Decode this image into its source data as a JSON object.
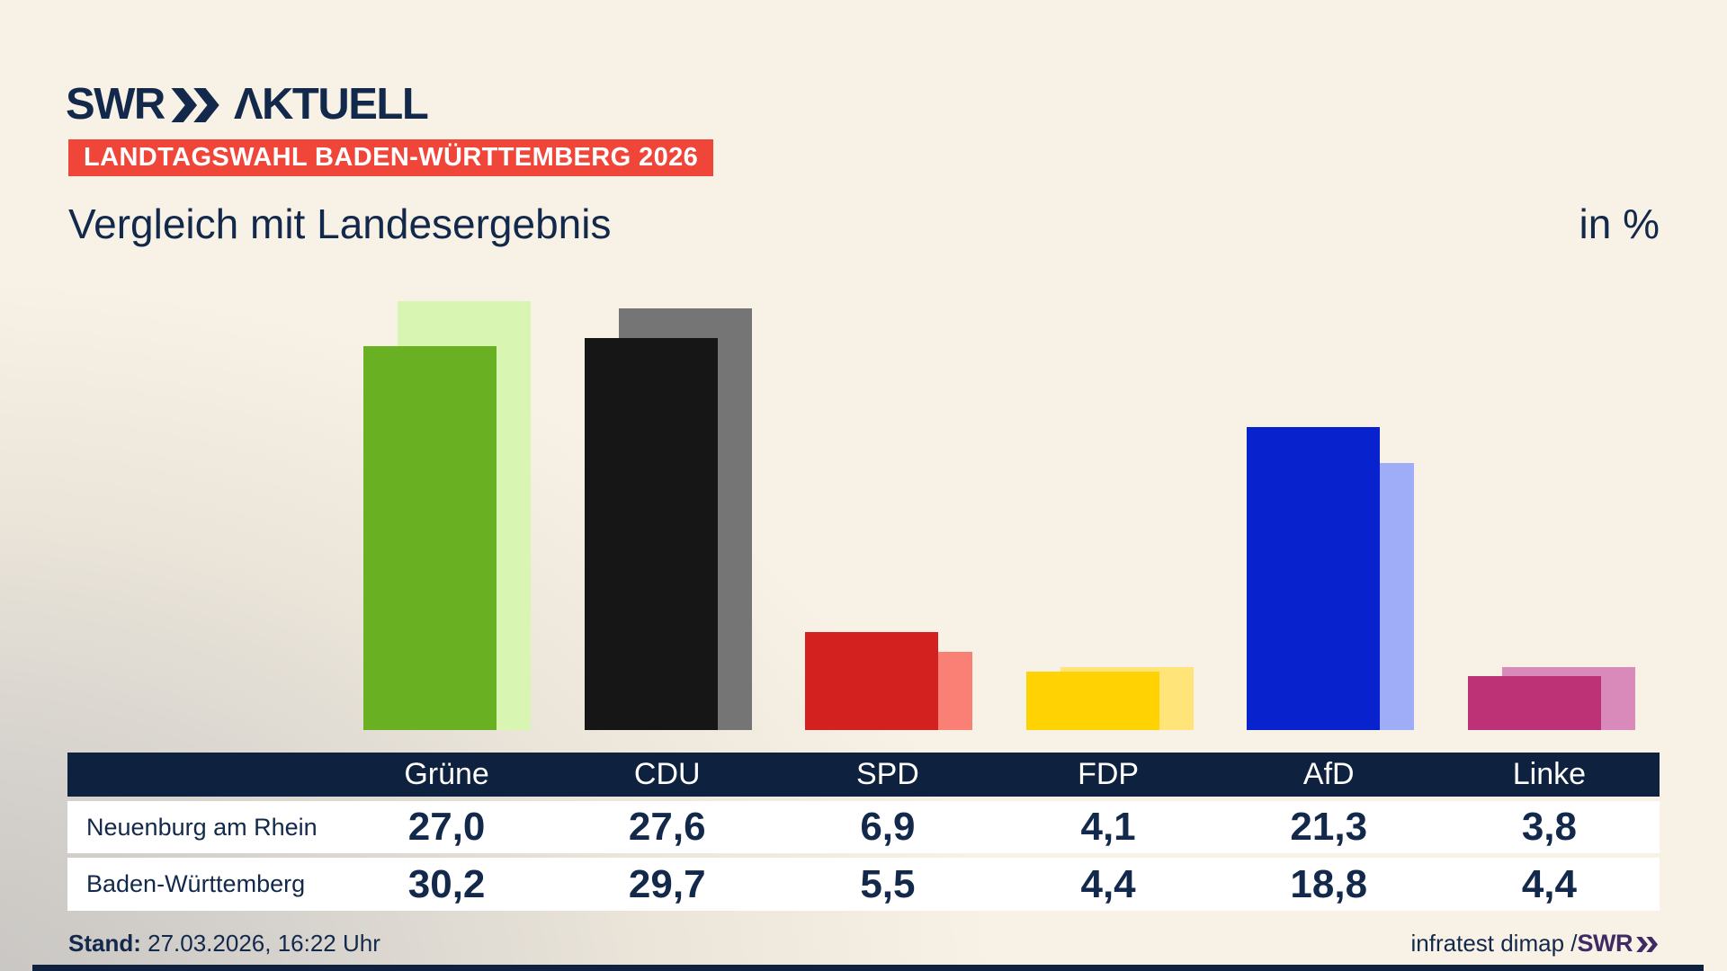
{
  "brand": {
    "swr": "SWR",
    "aktuell": "ΛKTUELL"
  },
  "badge": {
    "text": "LANDTAGSWAHL BADEN-WÜRTTEMBERG 2026",
    "bg": "#f0463a",
    "fg": "#ffffff"
  },
  "title": "Vergleich mit Landesergebnis",
  "unit_label": "in %",
  "chart_data": {
    "type": "bar",
    "categories": [
      "Grüne",
      "CDU",
      "SPD",
      "FDP",
      "AfD",
      "Linke"
    ],
    "series": [
      {
        "name": "Neuenburg am Rhein",
        "role": "front",
        "values": [
          27.0,
          27.6,
          6.9,
          4.1,
          21.3,
          3.8
        ]
      },
      {
        "name": "Baden-Württemberg",
        "role": "back",
        "values": [
          30.2,
          29.7,
          5.5,
          4.4,
          18.8,
          4.4
        ]
      }
    ],
    "title": "Vergleich mit Landesergebnis",
    "unit": "in %",
    "ylim": [
      0,
      34
    ],
    "grid": false,
    "legend_position": "table-below",
    "bar_colors_front": [
      "#6ab023",
      "#161616",
      "#d32120",
      "#ffd204",
      "#0823cd",
      "#bd3277"
    ],
    "bar_colors_back": [
      "#d8f6b2",
      "#757575",
      "#fa8076",
      "#ffe47a",
      "#9fadf8",
      "#d98aba"
    ]
  },
  "table": {
    "header": [
      "",
      "Grüne",
      "CDU",
      "SPD",
      "FDP",
      "AfD",
      "Linke"
    ],
    "rows": [
      {
        "label": "Neuenburg am Rhein",
        "values": [
          "27,0",
          "27,6",
          "6,9",
          "4,1",
          "21,3",
          "3,8"
        ]
      },
      {
        "label": "Baden-Württemberg",
        "values": [
          "30,2",
          "29,7",
          "5,5",
          "4,4",
          "18,8",
          "4,4"
        ]
      }
    ]
  },
  "footer": {
    "stand_label": "Stand:",
    "stand_value": " 27.03.2026, 16:22 Uhr",
    "source_text": "infratest dimap / ",
    "source_brand": "SWR"
  },
  "colors": {
    "background": "#f8f1e6",
    "background_corner": "#c6c4c1",
    "navy_text": "#13294b",
    "table_header_bg": "#0e2240",
    "badge_red": "#f0463a",
    "row_bg": "#ffffff",
    "footer_brand_purple": "#402a63",
    "bottom_bar": "#0e2240"
  }
}
